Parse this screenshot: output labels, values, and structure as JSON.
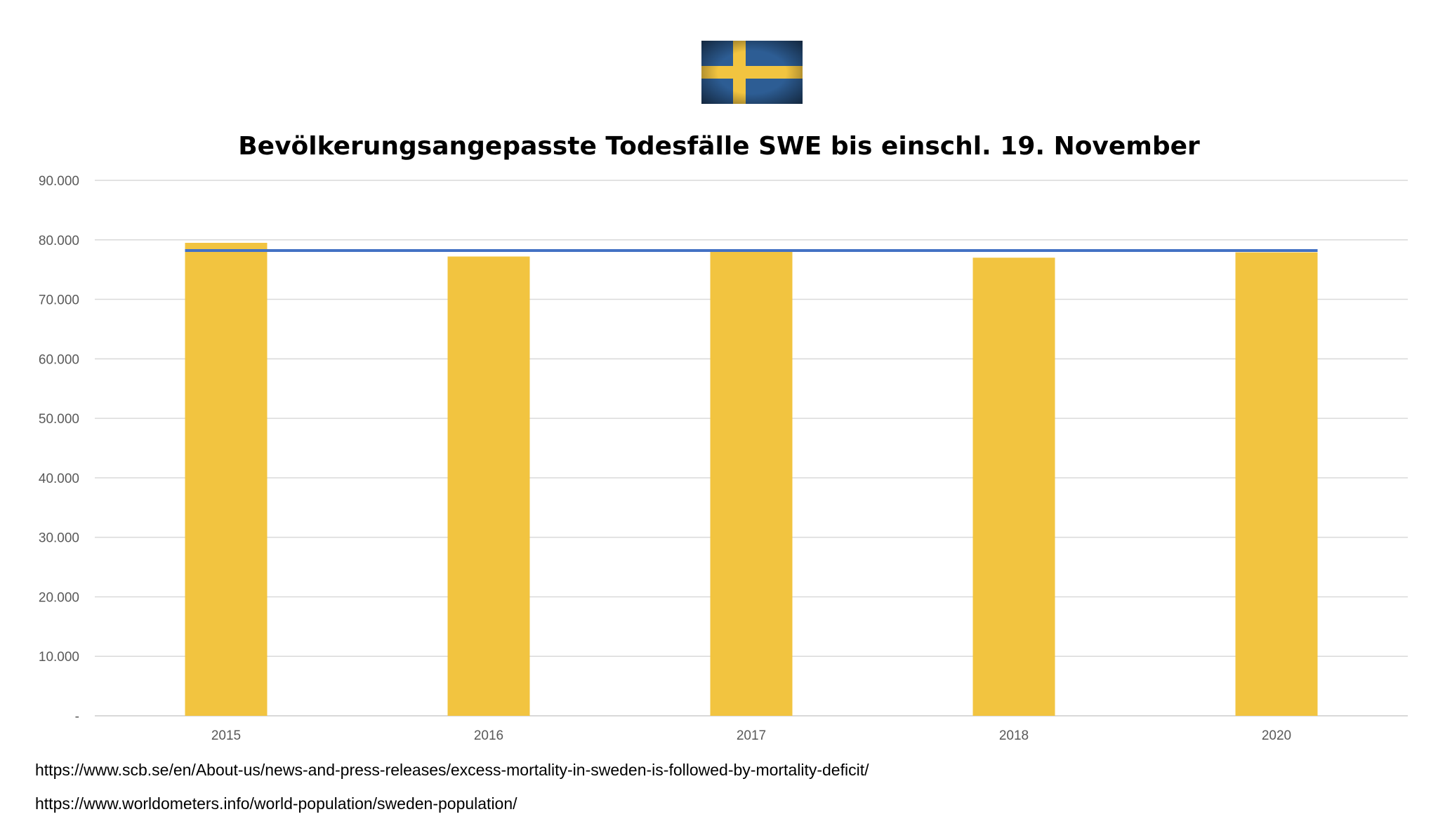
{
  "flag": {
    "icon": "sweden-flag-icon",
    "colors": {
      "blue": "#2d5d94",
      "yellow": "#f2c440"
    }
  },
  "chart_data": {
    "type": "bar",
    "title": "Bevölkerungsangepasste Todesfälle SWE bis einschl. 19. November",
    "categories": [
      "2015",
      "2016",
      "2017",
      "2018",
      "2020"
    ],
    "series": [
      {
        "type": "bar",
        "color": "#f2c440",
        "values": [
          79500,
          77200,
          78000,
          77000,
          77900
        ]
      },
      {
        "type": "line",
        "color": "#4472c4",
        "values": [
          78200,
          78200,
          78200,
          78200,
          78200
        ]
      }
    ],
    "ylim": [
      0,
      90000
    ],
    "yticks": [
      0,
      10000,
      20000,
      30000,
      40000,
      50000,
      60000,
      70000,
      80000,
      90000
    ],
    "ytick_labels": [
      "-",
      "10.000",
      "20.000",
      "30.000",
      "40.000",
      "50.000",
      "60.000",
      "70.000",
      "80.000",
      "90.000"
    ],
    "xlabel": "",
    "ylabel": "",
    "grid": true,
    "legend": "none",
    "gridline_color": "#d9d9d9"
  },
  "sources": [
    "https://www.scb.se/en/About-us/news-and-press-releases/excess-mortality-in-sweden-is-followed-by-mortality-deficit/",
    "https://www.worldometers.info/world-population/sweden-population/"
  ]
}
